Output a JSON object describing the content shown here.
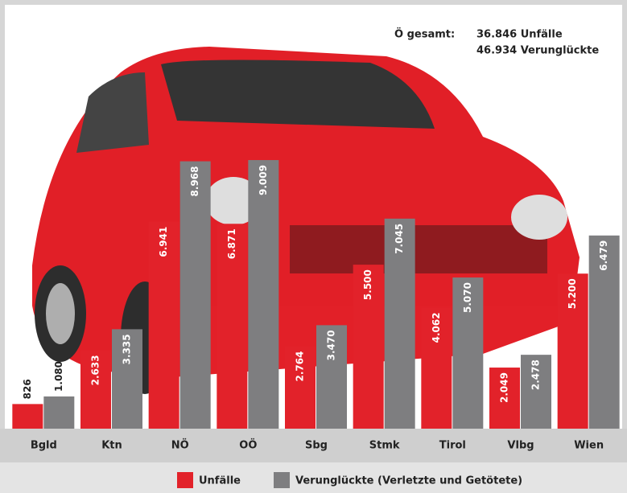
{
  "chart_data": {
    "type": "bar",
    "annotation": {
      "label": "Ö gesamt:",
      "lines": [
        "36.846 Unfälle",
        "46.934 Verunglückte"
      ]
    },
    "categories": [
      "Bgld",
      "Ktn",
      "NÖ",
      "OÖ",
      "Sbg",
      "Stmk",
      "Tirol",
      "Vlbg",
      "Wien"
    ],
    "series": [
      {
        "name": "Unfälle",
        "color": "#e2222a",
        "values": [
          826,
          2633,
          6941,
          6871,
          2764,
          5500,
          4062,
          2049,
          5200
        ],
        "value_labels": [
          "826",
          "2.633",
          "6.941",
          "6.871",
          "2.764",
          "5.500",
          "4.062",
          "2.049",
          "5.200"
        ]
      },
      {
        "name": "Verunglückte (Verletzte und Getötete)",
        "color": "#7e7e80",
        "values": [
          1080,
          3335,
          8968,
          9009,
          3470,
          7045,
          5070,
          2478,
          6479
        ],
        "value_labels": [
          "1.080",
          "3.335",
          "8.968",
          "9.009",
          "3.470",
          "7.045",
          "5.070",
          "2.478",
          "6.479"
        ]
      }
    ],
    "ylim": [
      0,
      14000
    ]
  }
}
